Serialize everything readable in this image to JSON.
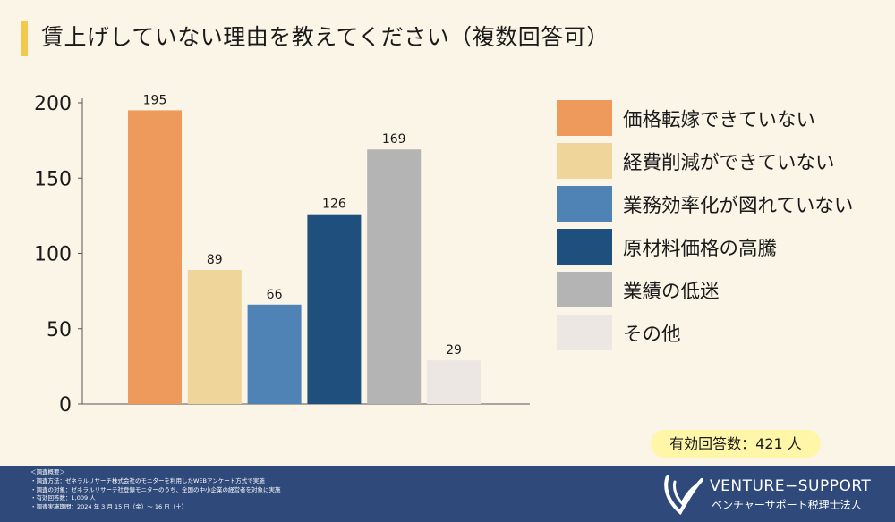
{
  "title": "賃上げしていない理由を教えてください（複数回答可）",
  "chart_data": {
    "type": "bar",
    "categories": [
      "価格転嫁できていない",
      "経費削減ができていない",
      "業務効率化が図れていない",
      "原材料価格の高騰",
      "業績の低迷",
      "その他"
    ],
    "values": [
      195,
      89,
      66,
      126,
      169,
      29
    ],
    "value_labels": [
      "195",
      "89",
      "66",
      "126",
      "169",
      "29"
    ],
    "colors": [
      "#ee9a5c",
      "#f0d59a",
      "#4f82b5",
      "#1e4f7d",
      "#b4b4b4",
      "#ece7e2"
    ],
    "ylim": [
      0,
      200
    ],
    "yticks": [
      0,
      50,
      100,
      150,
      200
    ],
    "ytick_labels": [
      "0",
      "50",
      "100",
      "150",
      "200"
    ],
    "title": "",
    "xlabel": "",
    "ylabel": "",
    "legend_position": "right"
  },
  "legend": {
    "items": [
      {
        "label": "価格転嫁できていない",
        "color": "#ee9a5c"
      },
      {
        "label": "経費削減ができていない",
        "color": "#f0d59a"
      },
      {
        "label": "業務効率化が図れていない",
        "color": "#4f82b5"
      },
      {
        "label": "原材料価格の高騰",
        "color": "#1e4f7d"
      },
      {
        "label": "業績の低迷",
        "color": "#b4b4b4"
      },
      {
        "label": "その他",
        "color": "#ece7e2"
      }
    ]
  },
  "responses_badge": "有効回答数：421 人",
  "footer": {
    "notes": [
      "＜調査概要＞",
      "・調査方法：ゼネラルリサーチ株式会社のモニターを利用したWEBアンケート方式で実施",
      "・調査の対象：ゼネラルリサーチ社登録モニターのうち、全国の中小企業の経営者を対象に実施",
      "・有効回答数：1,009 人",
      "・調査実施期間：2024 年 3 月 15 日（金）～ 16 日（土）"
    ],
    "brand_name": "VENTURE−SUPPORT",
    "brand_sub": "ベンチャーサポート税理士法人"
  },
  "colors": {
    "background": "#fbf5e8",
    "accent": "#f2c94c",
    "footer": "#2f4a7a",
    "badge": "#fff6a8"
  }
}
